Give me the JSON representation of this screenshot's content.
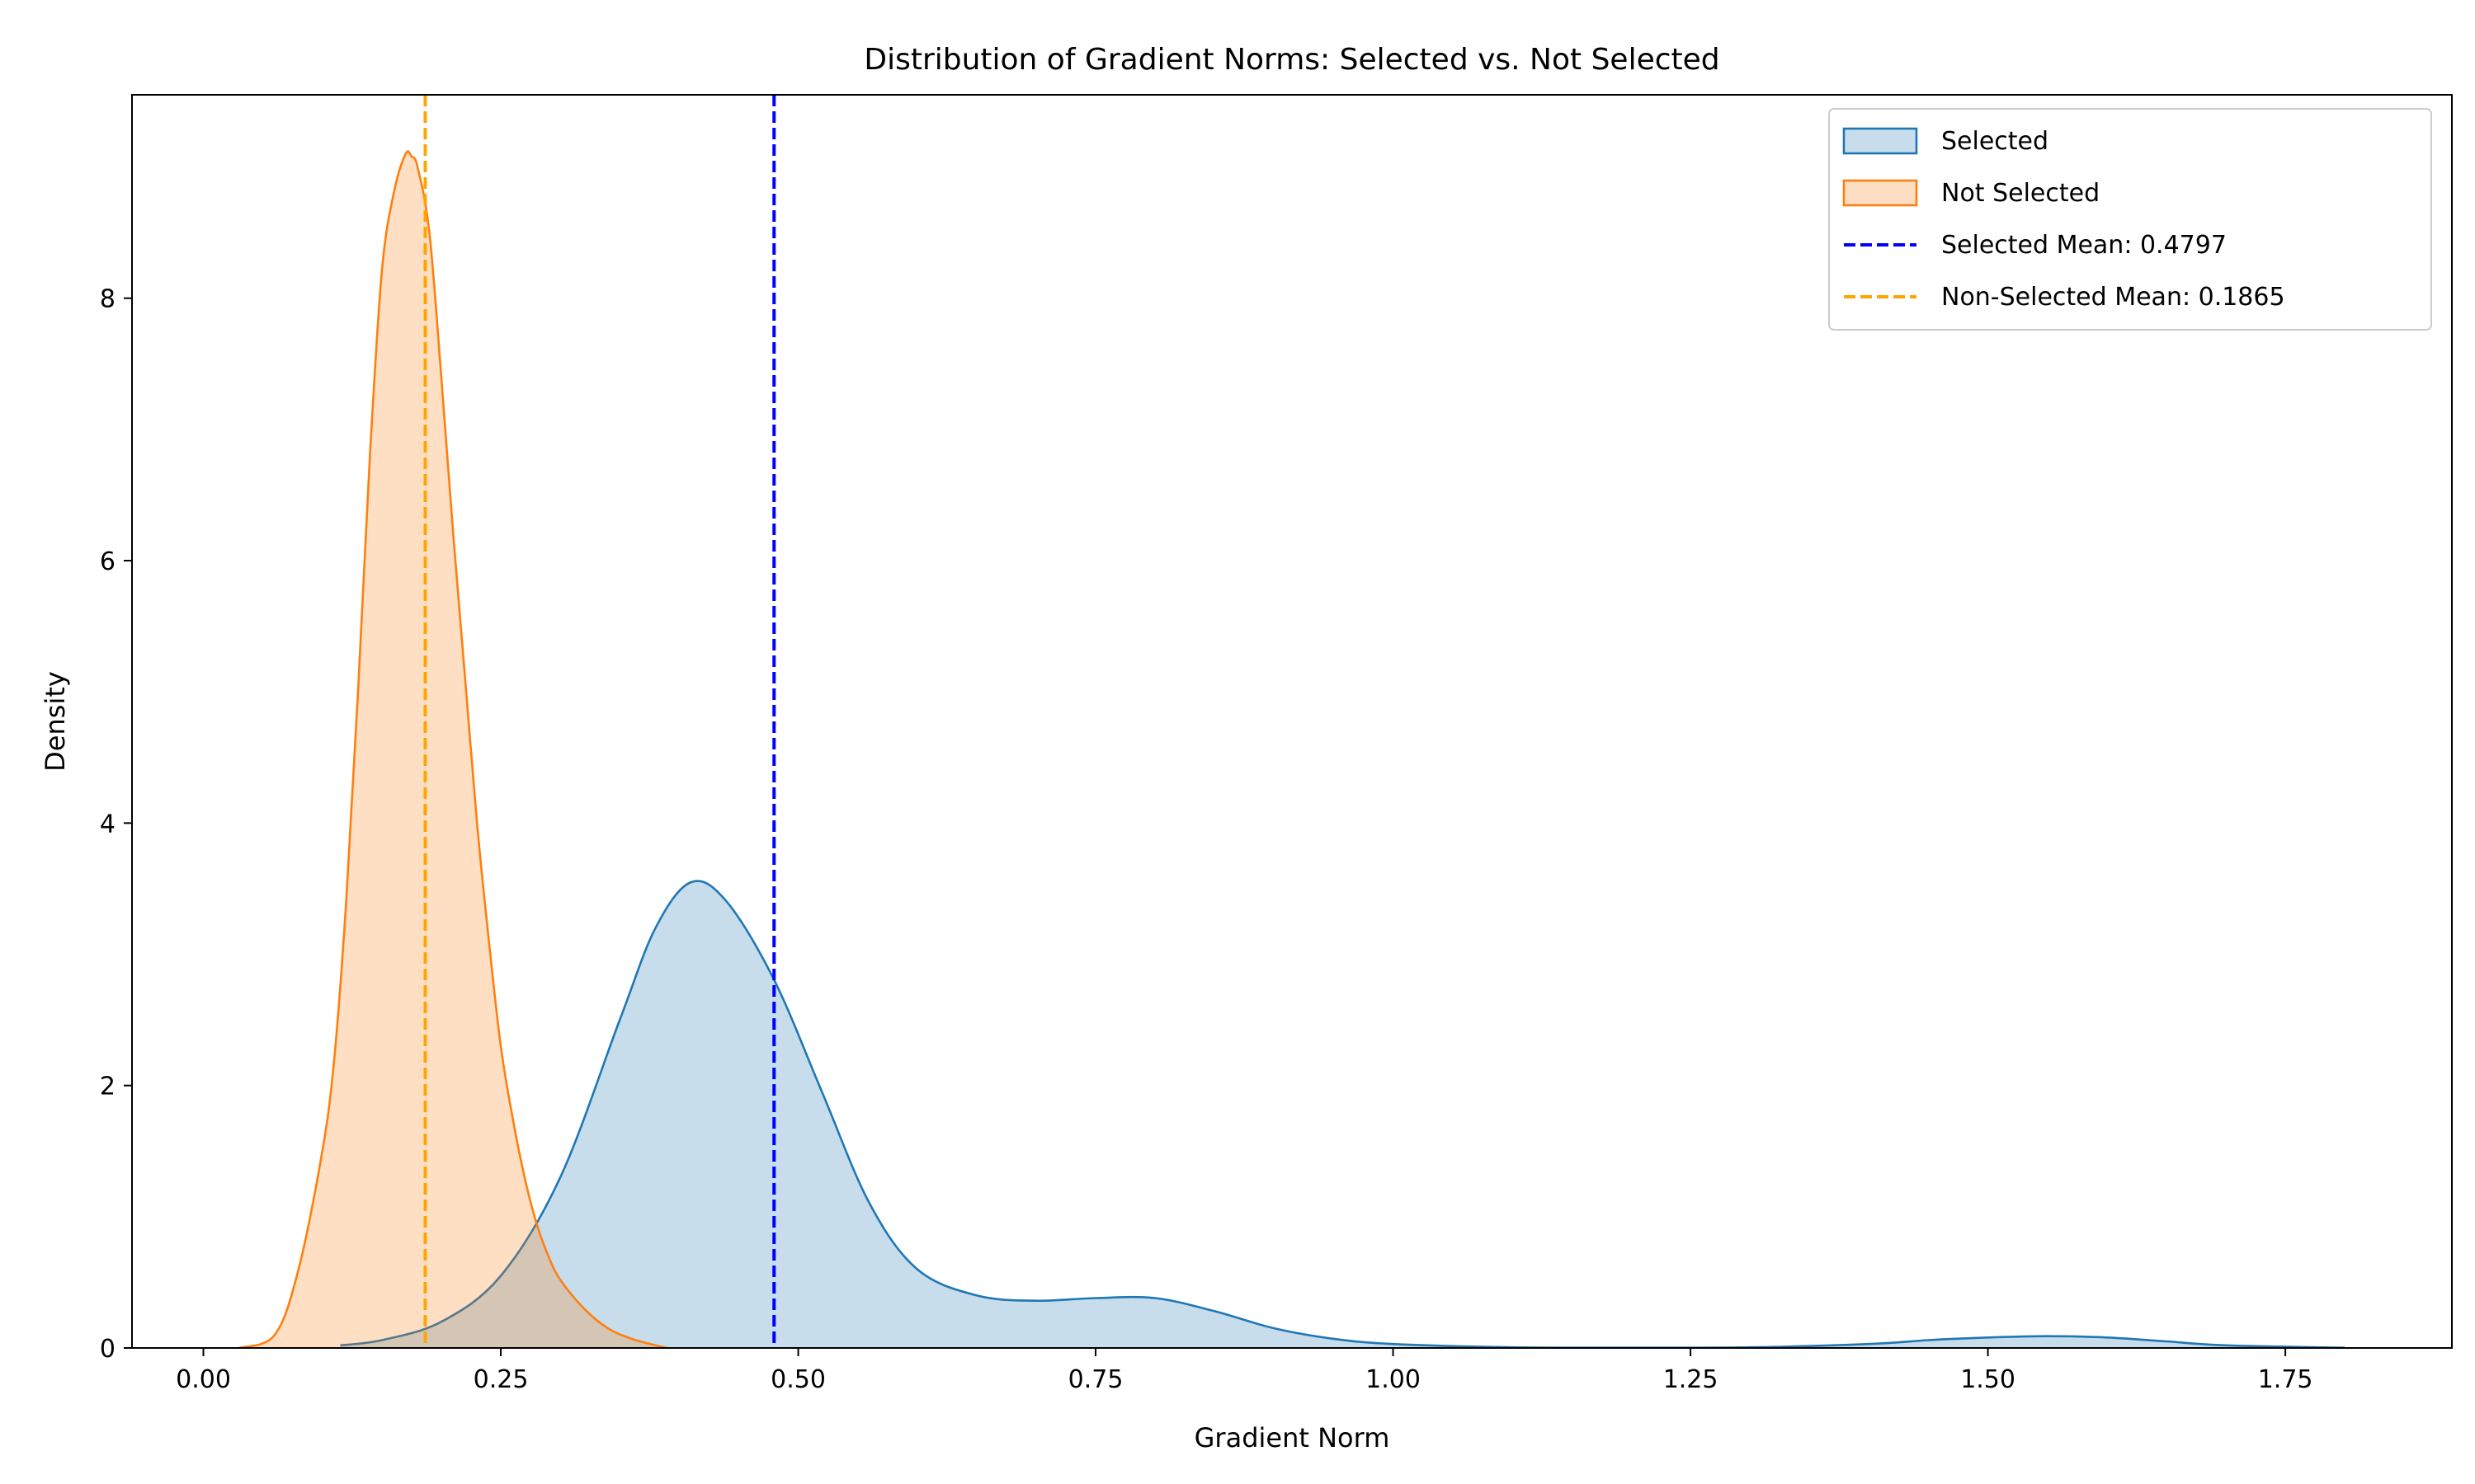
{
  "chart_data": {
    "type": "area",
    "title": "Distribution of Gradient Norms: Selected vs. Not Selected",
    "xlabel": "Gradient Norm",
    "ylabel": "Density",
    "xlim": [
      -0.06,
      1.89
    ],
    "ylim": [
      0,
      9.55
    ],
    "xticks": [
      0.0,
      0.25,
      0.5,
      0.75,
      1.0,
      1.25,
      1.5,
      1.75
    ],
    "xtick_labels": [
      "0.00",
      "0.25",
      "0.50",
      "0.75",
      "1.00",
      "1.25",
      "1.50",
      "1.75"
    ],
    "yticks": [
      0,
      2,
      4,
      6,
      8
    ],
    "ytick_labels": [
      "0",
      "2",
      "4",
      "6",
      "8"
    ],
    "grid": false,
    "legend_position": "top-right",
    "series": [
      {
        "name": "Selected",
        "color": "#1f77b4",
        "x": [
          0.115,
          0.15,
          0.2,
          0.25,
          0.3,
          0.35,
          0.38,
          0.41,
          0.44,
          0.48,
          0.52,
          0.56,
          0.6,
          0.65,
          0.7,
          0.75,
          0.8,
          0.85,
          0.9,
          0.95,
          1.0,
          1.1,
          1.2,
          1.3,
          1.4,
          1.45,
          1.5,
          1.55,
          1.6,
          1.65,
          1.7,
          1.8
        ],
        "y": [
          0.02,
          0.06,
          0.2,
          0.55,
          1.3,
          2.5,
          3.2,
          3.55,
          3.4,
          2.8,
          1.95,
          1.1,
          0.6,
          0.4,
          0.36,
          0.38,
          0.38,
          0.28,
          0.15,
          0.07,
          0.03,
          0.005,
          0.002,
          0.005,
          0.03,
          0.06,
          0.08,
          0.09,
          0.08,
          0.05,
          0.02,
          0.002
        ]
      },
      {
        "name": "Not Selected",
        "color": "#ff7f0e",
        "x": [
          0.03,
          0.06,
          0.08,
          0.1,
          0.11,
          0.12,
          0.13,
          0.14,
          0.15,
          0.16,
          0.17,
          0.175,
          0.18,
          0.19,
          0.2,
          0.21,
          0.22,
          0.23,
          0.24,
          0.25,
          0.26,
          0.27,
          0.28,
          0.29,
          0.3,
          0.32,
          0.34,
          0.36,
          0.38,
          0.39
        ],
        "y": [
          0.0,
          0.1,
          0.6,
          1.5,
          2.2,
          3.4,
          5.0,
          6.8,
          8.2,
          8.8,
          9.1,
          9.08,
          9.0,
          8.5,
          7.4,
          6.2,
          5.1,
          4.0,
          3.1,
          2.3,
          1.75,
          1.3,
          0.95,
          0.7,
          0.52,
          0.3,
          0.15,
          0.07,
          0.02,
          0.0
        ]
      }
    ],
    "vlines": [
      {
        "name": "Selected Mean: 0.4797",
        "x": 0.4797,
        "color": "#0000ff",
        "style": "dashed"
      },
      {
        "name": "Non-Selected Mean: 0.1865",
        "x": 0.1865,
        "color": "#ffa500",
        "style": "dashed"
      }
    ]
  }
}
